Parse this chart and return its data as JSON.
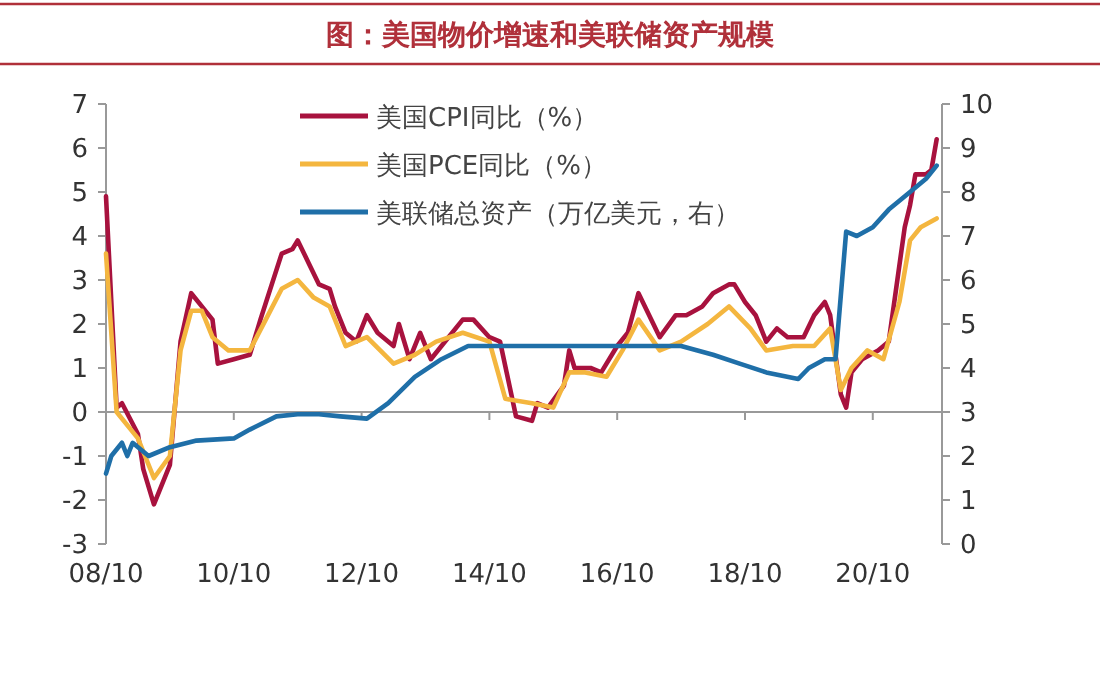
{
  "chart_data": {
    "type": "line",
    "title": "图：美国物价增速和美联储资产规模",
    "xlim": [
      "2008-10",
      "2021-11"
    ],
    "xticks": [
      {
        "value": "2008-10",
        "label": "08/10"
      },
      {
        "value": "2010-10",
        "label": "10/10"
      },
      {
        "value": "2012-10",
        "label": "12/10"
      },
      {
        "value": "2014-10",
        "label": "14/10"
      },
      {
        "value": "2016-10",
        "label": "16/10"
      },
      {
        "value": "2018-10",
        "label": "18/10"
      },
      {
        "value": "2020-10",
        "label": "20/10"
      }
    ],
    "ylim": [
      -3,
      7
    ],
    "yticks": [
      -3,
      -2,
      -1,
      0,
      1,
      2,
      3,
      4,
      5,
      6,
      7
    ],
    "y2lim": [
      0,
      10
    ],
    "y2ticks": [
      0,
      1,
      2,
      3,
      4,
      5,
      6,
      7,
      8,
      9,
      10
    ],
    "legend": "top left",
    "marker": "none",
    "line_style": "solid",
    "series": [
      {
        "name": "美国CPI同比（%）",
        "color": "#a8123e",
        "x": [
          "2008-10",
          "2008-12",
          "2009-01",
          "2009-04",
          "2009-05",
          "2009-07",
          "2009-10",
          "2009-12",
          "2010-02",
          "2010-04",
          "2010-06",
          "2010-07",
          "2010-10",
          "2011-01",
          "2011-03",
          "2011-07",
          "2011-09",
          "2011-10",
          "2011-12",
          "2012-02",
          "2012-04",
          "2012-05",
          "2012-07",
          "2012-09",
          "2012-11",
          "2013-01",
          "2013-04",
          "2013-05",
          "2013-07",
          "2013-09",
          "2013-11",
          "2014-01",
          "2014-05",
          "2014-07",
          "2014-10",
          "2014-12",
          "2015-03",
          "2015-06",
          "2015-07",
          "2015-09",
          "2015-12",
          "2016-01",
          "2016-02",
          "2016-05",
          "2016-07",
          "2016-10",
          "2016-12",
          "2017-02",
          "2017-04",
          "2017-06",
          "2017-09",
          "2017-11",
          "2018-02",
          "2018-04",
          "2018-07",
          "2018-08",
          "2018-10",
          "2018-12",
          "2019-02",
          "2019-04",
          "2019-06",
          "2019-09",
          "2019-11",
          "2020-01",
          "2020-02",
          "2020-04",
          "2020-05",
          "2020-06",
          "2020-08",
          "2020-11",
          "2021-01",
          "2021-04",
          "2021-05",
          "2021-06",
          "2021-08",
          "2021-09",
          "2021-10"
        ],
        "values": [
          4.9,
          0.1,
          0.2,
          -0.5,
          -1.3,
          -2.1,
          -1.2,
          1.6,
          2.7,
          2.4,
          2.1,
          1.1,
          1.2,
          1.3,
          2.1,
          3.6,
          3.7,
          3.9,
          3.4,
          2.9,
          2.8,
          2.4,
          1.8,
          1.6,
          2.2,
          1.8,
          1.5,
          2.0,
          1.2,
          1.8,
          1.2,
          1.5,
          2.1,
          2.1,
          1.7,
          1.6,
          -0.1,
          -0.2,
          0.2,
          0.1,
          0.6,
          1.4,
          1.0,
          1.0,
          0.9,
          1.5,
          1.8,
          2.7,
          2.2,
          1.7,
          2.2,
          2.2,
          2.4,
          2.7,
          2.9,
          2.9,
          2.5,
          2.2,
          1.6,
          1.9,
          1.7,
          1.7,
          2.2,
          2.5,
          2.2,
          0.4,
          0.1,
          0.9,
          1.2,
          1.4,
          1.6,
          4.2,
          4.7,
          5.4,
          5.4,
          5.5,
          6.2
        ]
      },
      {
        "name": "美国PCE同比（%）",
        "color": "#f4b63f",
        "x": [
          "2008-10",
          "2008-12",
          "2009-04",
          "2009-07",
          "2009-10",
          "2009-12",
          "2010-02",
          "2010-04",
          "2010-06",
          "2010-09",
          "2011-01",
          "2011-04",
          "2011-07",
          "2011-10",
          "2012-01",
          "2012-04",
          "2012-07",
          "2012-11",
          "2013-04",
          "2013-08",
          "2013-12",
          "2014-05",
          "2014-10",
          "2015-01",
          "2015-06",
          "2015-10",
          "2016-01",
          "2016-04",
          "2016-08",
          "2016-11",
          "2017-02",
          "2017-06",
          "2017-10",
          "2018-03",
          "2018-07",
          "2018-11",
          "2019-02",
          "2019-07",
          "2019-11",
          "2020-02",
          "2020-04",
          "2020-06",
          "2020-09",
          "2020-12",
          "2021-03",
          "2021-05",
          "2021-07",
          "2021-10"
        ],
        "values": [
          3.6,
          0.0,
          -0.6,
          -1.5,
          -1.0,
          1.4,
          2.3,
          2.3,
          1.7,
          1.4,
          1.4,
          2.1,
          2.8,
          3.0,
          2.6,
          2.4,
          1.5,
          1.7,
          1.1,
          1.3,
          1.6,
          1.8,
          1.6,
          0.3,
          0.2,
          0.1,
          0.9,
          0.9,
          0.8,
          1.4,
          2.1,
          1.4,
          1.6,
          2.0,
          2.4,
          1.9,
          1.4,
          1.5,
          1.5,
          1.9,
          0.5,
          1.0,
          1.4,
          1.2,
          2.5,
          3.9,
          4.2,
          4.4
        ]
      },
      {
        "name": "美联储总资产（万亿美元，右）",
        "color": "#1f6fa8",
        "axis": "y2",
        "x": [
          "2008-10",
          "2008-11",
          "2009-01",
          "2009-02",
          "2009-03",
          "2009-06",
          "2009-10",
          "2010-03",
          "2010-10",
          "2011-01",
          "2011-06",
          "2011-10",
          "2012-02",
          "2012-06",
          "2012-11",
          "2013-03",
          "2013-08",
          "2014-01",
          "2014-06",
          "2014-11",
          "2017-10",
          "2018-04",
          "2018-09",
          "2019-02",
          "2019-08",
          "2019-10",
          "2020-01",
          "2020-03",
          "2020-05",
          "2020-07",
          "2020-10",
          "2021-01",
          "2021-05",
          "2021-08",
          "2021-10"
        ],
        "values": [
          1.6,
          2.0,
          2.3,
          2.0,
          2.3,
          2.0,
          2.2,
          2.35,
          2.4,
          2.6,
          2.9,
          2.95,
          2.95,
          2.9,
          2.85,
          3.2,
          3.8,
          4.2,
          4.5,
          4.5,
          4.5,
          4.3,
          4.1,
          3.9,
          3.75,
          4.0,
          4.2,
          4.2,
          7.1,
          7.0,
          7.2,
          7.6,
          8.0,
          8.3,
          8.6
        ]
      }
    ]
  }
}
